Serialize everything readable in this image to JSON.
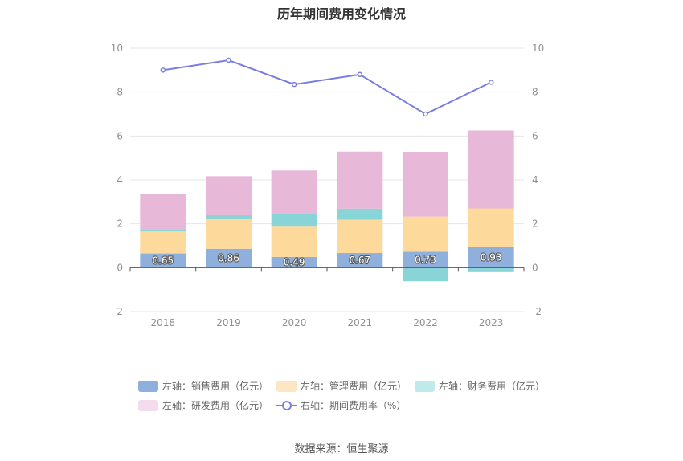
{
  "title": "历年期间费用变化情况",
  "source": "数据来源：恒生聚源",
  "chart_data": {
    "type": "bar",
    "stacked": true,
    "categories": [
      "2018",
      "2019",
      "2020",
      "2021",
      "2022",
      "2023"
    ],
    "left_axis": {
      "ylim": [
        -2,
        10
      ],
      "ticks": [
        "-2",
        "0",
        "2",
        "4",
        "6",
        "8",
        "10"
      ]
    },
    "right_axis": {
      "ylim": [
        -2,
        10
      ],
      "ticks": [
        "-2",
        "0",
        "2",
        "4",
        "6",
        "8",
        "10"
      ]
    },
    "series": [
      {
        "name": "左轴：销售费用（亿元）",
        "axis": "left",
        "type": "bar",
        "color": "#8fb0dc",
        "values": [
          0.65,
          0.86,
          0.49,
          0.67,
          0.73,
          0.93
        ],
        "labels": [
          "0.65",
          "0.86",
          "0.49",
          "0.67",
          "0.73",
          "0.93"
        ]
      },
      {
        "name": "左轴：管理费用（亿元）",
        "axis": "left",
        "type": "bar",
        "color": "#fdd99b",
        "values": [
          1.0,
          1.35,
          1.38,
          1.52,
          1.6,
          1.77
        ]
      },
      {
        "name": "左轴：财务费用（亿元）",
        "axis": "left",
        "type": "bar",
        "color": "#89d4d6",
        "values": [
          0.05,
          0.18,
          0.56,
          0.5,
          -0.62,
          -0.2
        ]
      },
      {
        "name": "左轴：研发费用（亿元）",
        "axis": "left",
        "type": "bar",
        "color": "#e8b8d8",
        "values": [
          1.65,
          1.78,
          2.0,
          2.6,
          2.95,
          3.55
        ]
      },
      {
        "name": "右轴：期间费用率（%）",
        "axis": "right",
        "type": "line",
        "color": "#7a7de0",
        "values": [
          9.0,
          9.45,
          8.35,
          8.8,
          7.0,
          8.45
        ]
      }
    ],
    "legend": {
      "position": "bottom",
      "items": [
        {
          "label": "左轴：销售费用（亿元）",
          "color": "#8fb0dc",
          "kind": "bar"
        },
        {
          "label": "左轴：管理费用（亿元）",
          "color": "#fde6c2",
          "kind": "bar"
        },
        {
          "label": "左轴：财务费用（亿元）",
          "color": "#bfe9ea",
          "kind": "bar"
        },
        {
          "label": "左轴：研发费用（亿元）",
          "color": "#f3dcec",
          "kind": "bar"
        },
        {
          "label": "右轴：期间费用率（%）",
          "color": "#7a7de0",
          "kind": "line"
        }
      ]
    },
    "grid": true
  }
}
